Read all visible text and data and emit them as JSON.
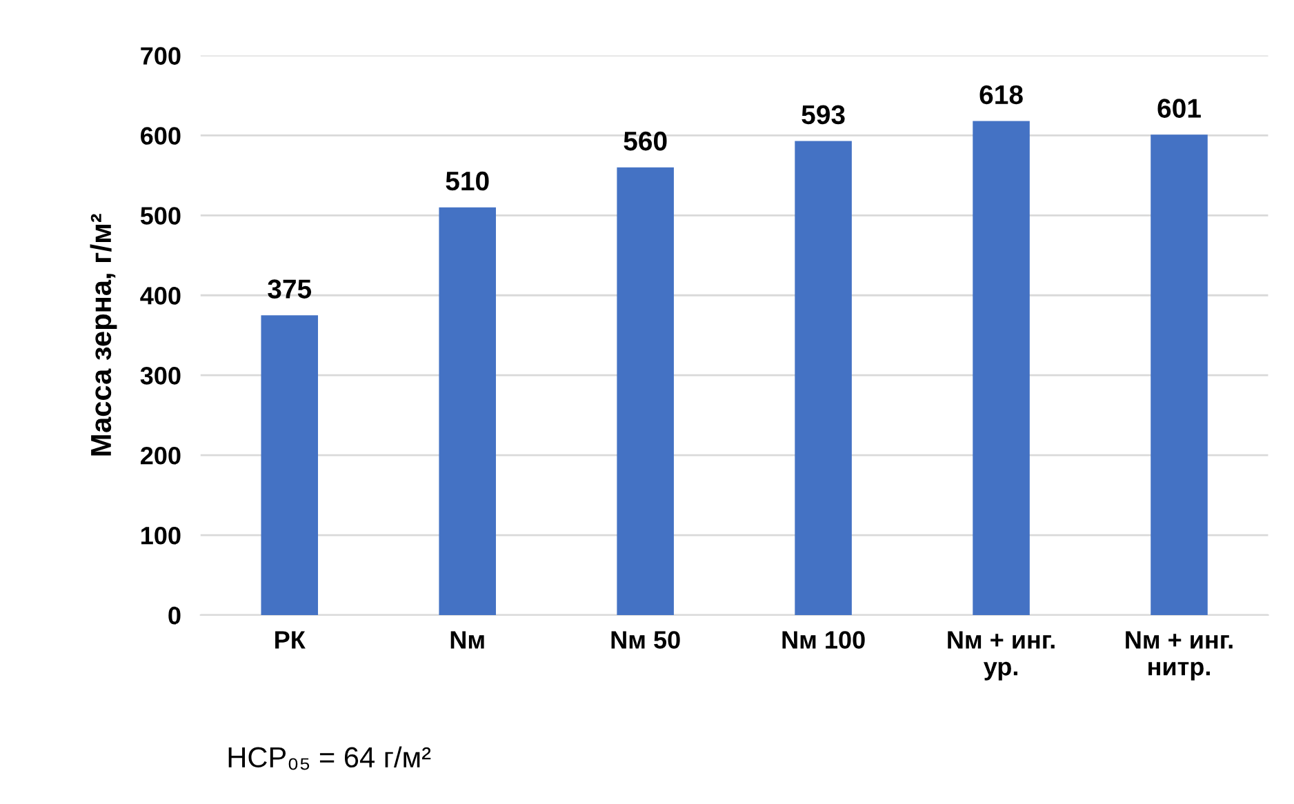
{
  "chart_data": {
    "type": "bar",
    "ylabel": "Масса зерна, г/м²",
    "categories": [
      "РК",
      "Nм",
      "Nм 50",
      "Nм 100",
      "Nм + инг.\nур.",
      "Nм + инг.\nнитр."
    ],
    "values": [
      375,
      510,
      560,
      593,
      618,
      601
    ],
    "color": "#4472c4",
    "ylim": [
      0,
      700
    ],
    "yticks": [
      0,
      100,
      200,
      300,
      400,
      500,
      600,
      700
    ],
    "grid": "y",
    "data_labels": true,
    "legend": false,
    "annotations": [
      "НСР₀₅ = 64 г/м²"
    ]
  }
}
